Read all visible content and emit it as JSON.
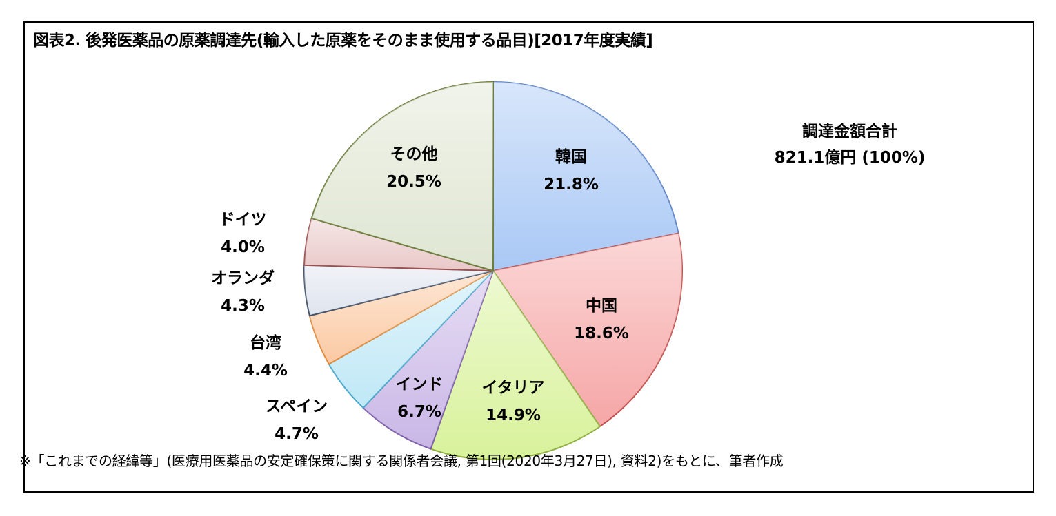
{
  "title": "図表2. 後発医薬品の原薬調達先(輸入した原薬をそのまま使用する品目)[2017年度実績]",
  "total": {
    "label": "調達金額合計",
    "value": "821.1億円 (100%)"
  },
  "note": "※「これまでの経緯等」(医療用医薬品の安定確保策に関する関係者会議, 第1回(2020年3月27日), 資料2)をもとに、筆者作成",
  "chart_data": {
    "type": "pie",
    "title": "図表2. 後発医薬品の原薬調達先(輸入した原薬をそのまま使用する品目)[2017年度実績]",
    "unit": "%",
    "slices": [
      {
        "name": "韓国",
        "value": 21.8,
        "label": "21.8%",
        "color": "#a9c8f5",
        "stroke": "#5b82c6"
      },
      {
        "name": "中国",
        "value": 18.6,
        "label": "18.6%",
        "color": "#f6a6a6",
        "stroke": "#c0504d"
      },
      {
        "name": "イタリア",
        "value": 14.9,
        "label": "14.9%",
        "color": "#d8f29a",
        "stroke": "#8faf3f"
      },
      {
        "name": "インド",
        "value": 6.7,
        "label": "6.7%",
        "color": "#c9b6e6",
        "stroke": "#7d5fa8"
      },
      {
        "name": "スペイン",
        "value": 4.7,
        "label": "4.7%",
        "color": "#bfe8f6",
        "stroke": "#46a6c8"
      },
      {
        "name": "台湾",
        "value": 4.4,
        "label": "4.4%",
        "color": "#fbc9a2",
        "stroke": "#e08a3c"
      },
      {
        "name": "オランダ",
        "value": 4.3,
        "label": "4.3%",
        "color": "#dfe4ee",
        "stroke": "#44546a"
      },
      {
        "name": "ドイツ",
        "value": 4.0,
        "label": "4.0%",
        "color": "#e9c8c8",
        "stroke": "#9b4f4f"
      },
      {
        "name": "その他",
        "value": 20.5,
        "label": "20.5%",
        "color": "#dfe6d2",
        "stroke": "#6b7d3c"
      }
    ]
  }
}
